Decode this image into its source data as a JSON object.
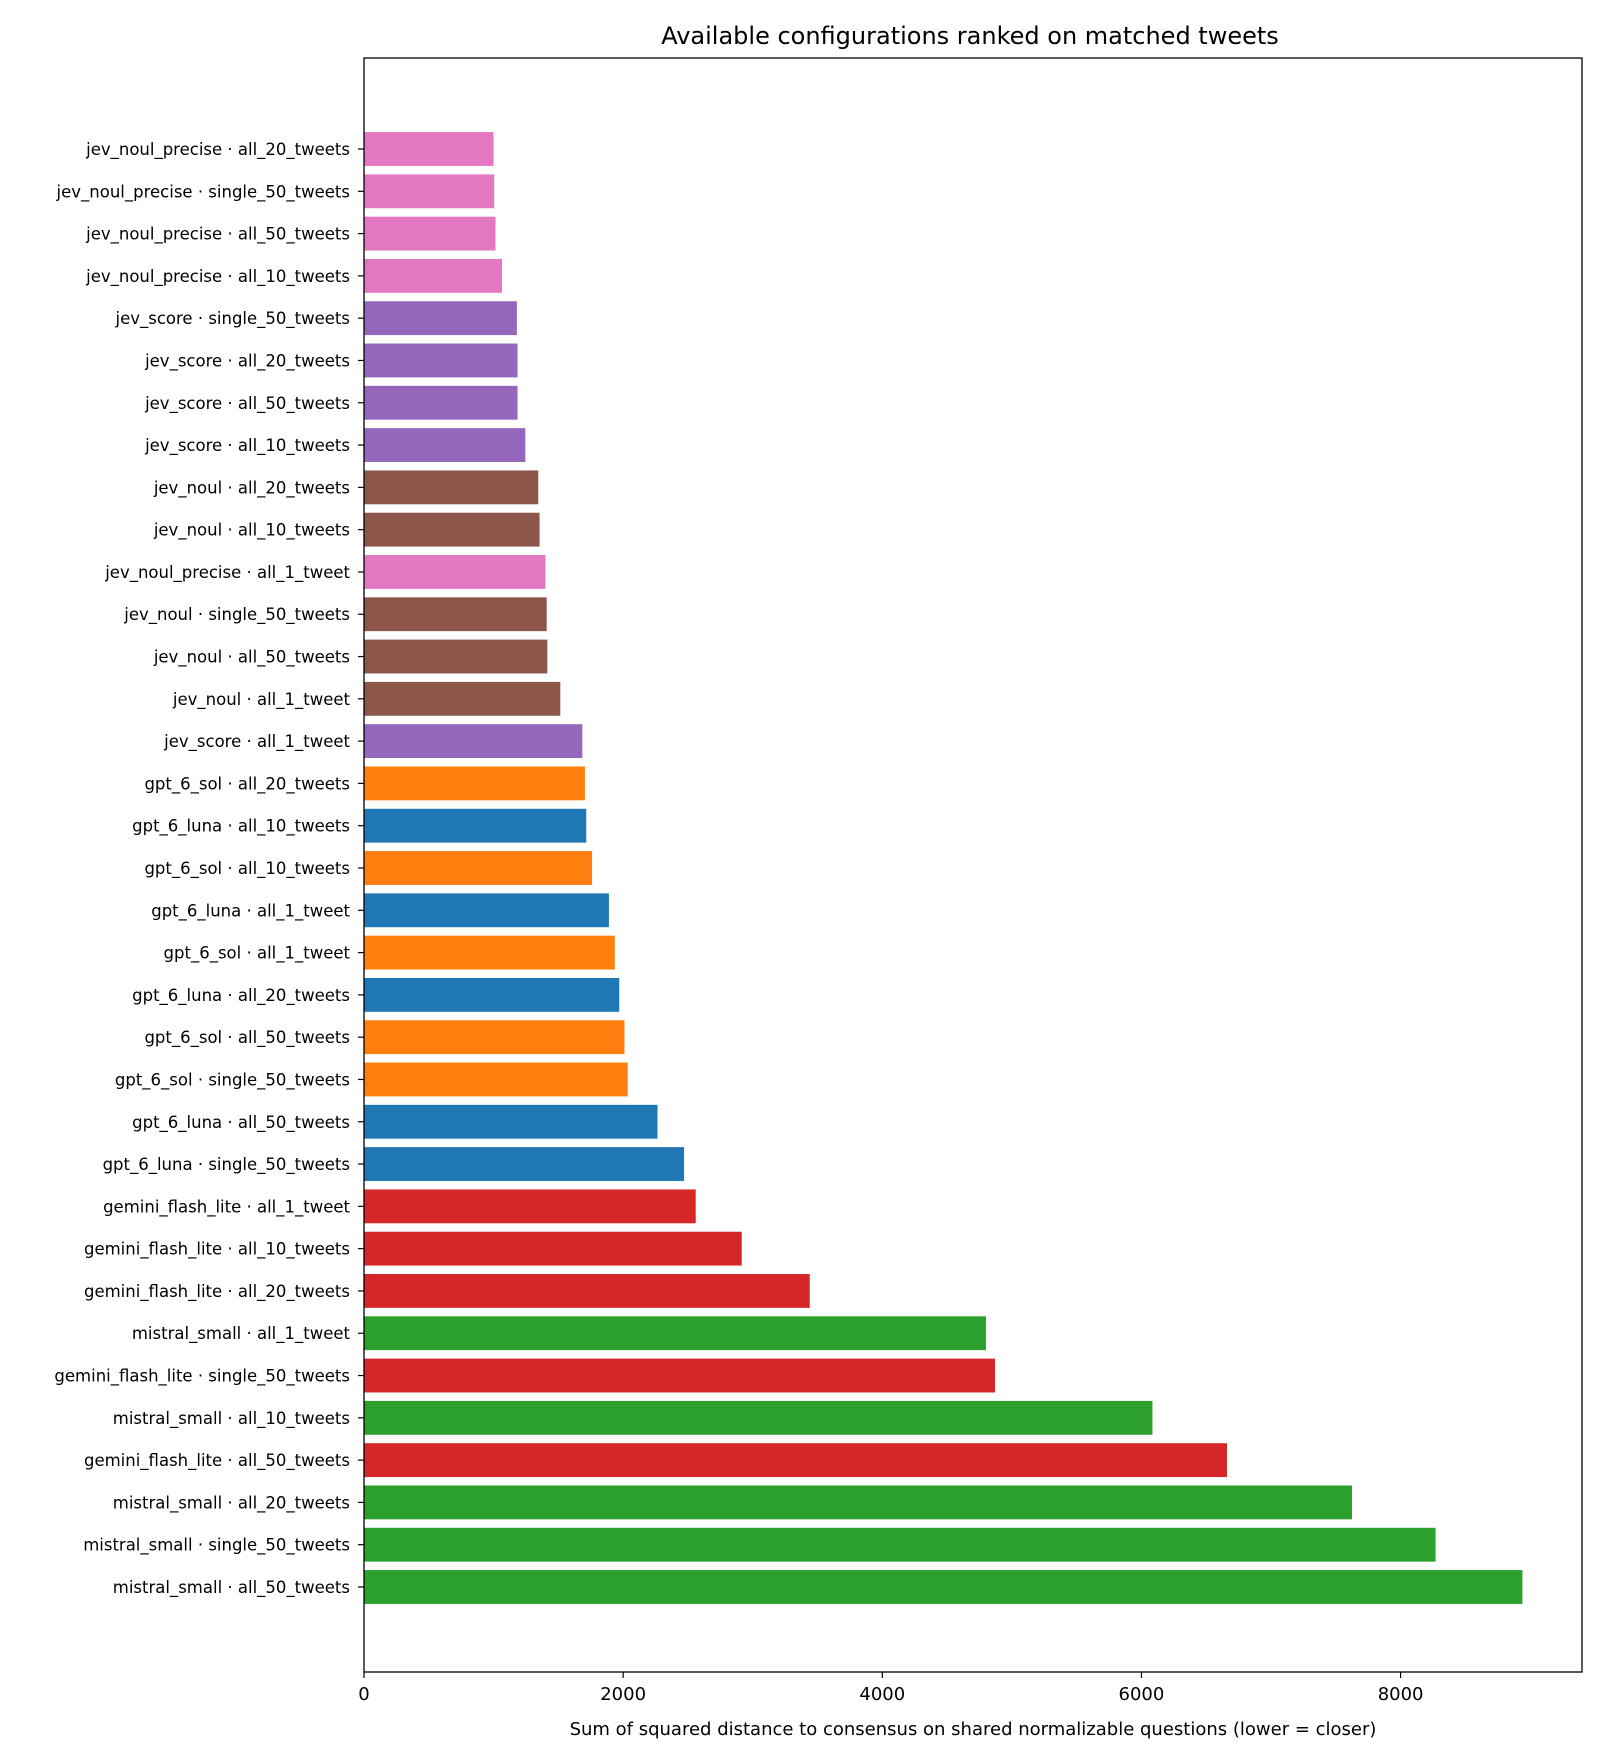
{
  "chart_data": {
    "type": "bar",
    "orientation": "horizontal",
    "title": "Available configurations ranked on matched tweets",
    "xlabel": "Sum of squared distance to consensus on shared normalizable questions (lower = closer)",
    "ylabel": "",
    "xlim": [
      0,
      9400
    ],
    "xticks": [
      "0",
      "2000",
      "4000",
      "6000",
      "8000"
    ],
    "grid": false,
    "colors": {
      "jev_noul_precise": "#e377c2",
      "jev_score": "#9467bd",
      "jev_noul": "#8c564b",
      "gpt_6_sol": "#ff7f0e",
      "gpt_6_luna": "#1f77b4",
      "gemini_flash_lite": "#d62728",
      "mistral_small": "#2ca02c"
    },
    "bars": [
      {
        "label": "jev_noul_precise · all_20_tweets",
        "model": "jev_noul_precise",
        "value": 1000
      },
      {
        "label": "jev_noul_precise · single_50_tweets",
        "model": "jev_noul_precise",
        "value": 1005
      },
      {
        "label": "jev_noul_precise · all_50_tweets",
        "model": "jev_noul_precise",
        "value": 1015
      },
      {
        "label": "jev_noul_precise · all_10_tweets",
        "model": "jev_noul_precise",
        "value": 1065
      },
      {
        "label": "jev_score · single_50_tweets",
        "model": "jev_score",
        "value": 1180
      },
      {
        "label": "jev_score · all_20_tweets",
        "model": "jev_score",
        "value": 1185
      },
      {
        "label": "jev_score · all_50_tweets",
        "model": "jev_score",
        "value": 1185
      },
      {
        "label": "jev_score · all_10_tweets",
        "model": "jev_score",
        "value": 1245
      },
      {
        "label": "jev_noul · all_20_tweets",
        "model": "jev_noul",
        "value": 1345
      },
      {
        "label": "jev_noul · all_10_tweets",
        "model": "jev_noul",
        "value": 1355
      },
      {
        "label": "jev_noul_precise · all_1_tweet",
        "model": "jev_noul_precise",
        "value": 1400
      },
      {
        "label": "jev_noul · single_50_tweets",
        "model": "jev_noul",
        "value": 1410
      },
      {
        "label": "jev_noul · all_50_tweets",
        "model": "jev_noul",
        "value": 1415
      },
      {
        "label": "jev_noul · all_1_tweet",
        "model": "jev_noul",
        "value": 1515
      },
      {
        "label": "jev_score · all_1_tweet",
        "model": "jev_score",
        "value": 1685
      },
      {
        "label": "gpt_6_sol · all_20_tweets",
        "model": "gpt_6_sol",
        "value": 1705
      },
      {
        "label": "gpt_6_luna · all_10_tweets",
        "model": "gpt_6_luna",
        "value": 1715
      },
      {
        "label": "gpt_6_sol · all_10_tweets",
        "model": "gpt_6_sol",
        "value": 1760
      },
      {
        "label": "gpt_6_luna · all_1_tweet",
        "model": "gpt_6_luna",
        "value": 1890
      },
      {
        "label": "gpt_6_sol · all_1_tweet",
        "model": "gpt_6_sol",
        "value": 1935
      },
      {
        "label": "gpt_6_luna · all_20_tweets",
        "model": "gpt_6_luna",
        "value": 1970
      },
      {
        "label": "gpt_6_sol · all_50_tweets",
        "model": "gpt_6_sol",
        "value": 2010
      },
      {
        "label": "gpt_6_sol · single_50_tweets",
        "model": "gpt_6_sol",
        "value": 2035
      },
      {
        "label": "gpt_6_luna · all_50_tweets",
        "model": "gpt_6_luna",
        "value": 2265
      },
      {
        "label": "gpt_6_luna · single_50_tweets",
        "model": "gpt_6_luna",
        "value": 2470
      },
      {
        "label": "gemini_flash_lite · all_1_tweet",
        "model": "gemini_flash_lite",
        "value": 2560
      },
      {
        "label": "gemini_flash_lite · all_10_tweets",
        "model": "gemini_flash_lite",
        "value": 2915
      },
      {
        "label": "gemini_flash_lite · all_20_tweets",
        "model": "gemini_flash_lite",
        "value": 3440
      },
      {
        "label": "mistral_small · all_1_tweet",
        "model": "mistral_small",
        "value": 4800
      },
      {
        "label": "gemini_flash_lite · single_50_tweets",
        "model": "gemini_flash_lite",
        "value": 4870
      },
      {
        "label": "mistral_small · all_10_tweets",
        "model": "mistral_small",
        "value": 6085
      },
      {
        "label": "gemini_flash_lite · all_50_tweets",
        "model": "gemini_flash_lite",
        "value": 6660
      },
      {
        "label": "mistral_small · all_20_tweets",
        "model": "mistral_small",
        "value": 7625
      },
      {
        "label": "mistral_small · single_50_tweets",
        "model": "mistral_small",
        "value": 8270
      },
      {
        "label": "mistral_small · all_50_tweets",
        "model": "mistral_small",
        "value": 8940
      }
    ]
  }
}
